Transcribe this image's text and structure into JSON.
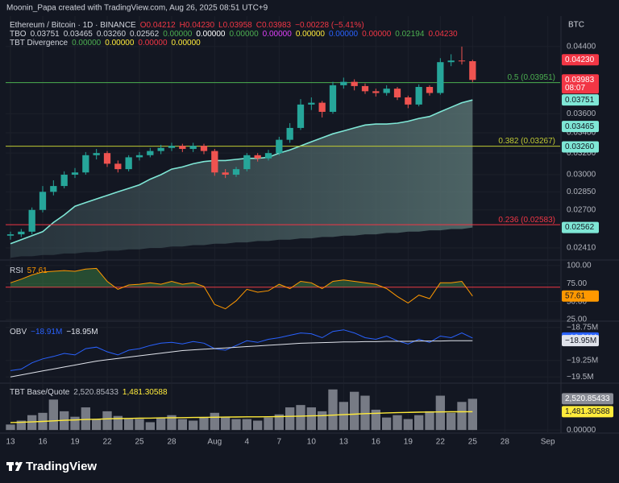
{
  "header": "Moonin_Papa created with TradingView.com, Aug 26, 2025 08:51 UTC+9",
  "footer": "TradingView",
  "chart_data": [
    {
      "type": "candlestick",
      "symbol": "Ethereum / Bitcoin · 1D · BINANCE",
      "ohlc_labels": [
        "O0.04212",
        "H0.04230",
        "L0.03958",
        "C0.03983",
        "−0.00228 (−5.41%)"
      ],
      "indicator_legends": [
        {
          "name": "TBO",
          "values": [
            "0.03751",
            "0.03465",
            "0.03260",
            "0.02562",
            "0.00000",
            "0.00000",
            "0.00000",
            "0.00000",
            "0.00000",
            "0.00000",
            "0.00000",
            "0.02194",
            "0.04230"
          ],
          "colors": [
            "#d1d4dc",
            "#d1d4dc",
            "#d1d4dc",
            "#d1d4dc",
            "#4caf50",
            "#ffffff",
            "#4caf50",
            "#e040fb",
            "#ffeb3b",
            "#2962ff",
            "#f23645",
            "#4caf50",
            "#f23645"
          ]
        },
        {
          "name": "TBT Divergence",
          "values": [
            "0.00000",
            "0.00000",
            "0.00000",
            "0.00000"
          ],
          "colors": [
            "#4caf50",
            "#ffeb3b",
            "#f23645",
            "#ffeb3b"
          ]
        }
      ],
      "currency": "BTC",
      "countdown": "08:07",
      "xlim": [
        -0.45,
        51.15
      ],
      "xticks": [
        {
          "value": 0,
          "label": "13"
        },
        {
          "value": 3,
          "label": "16"
        },
        {
          "value": 6,
          "label": "19"
        },
        {
          "value": 9,
          "label": "22"
        },
        {
          "value": 12,
          "label": "25"
        },
        {
          "value": 15,
          "label": "28"
        },
        {
          "value": 19,
          "label": "Aug"
        },
        {
          "value": 22,
          "label": "4"
        },
        {
          "value": 25,
          "label": "7"
        },
        {
          "value": 28,
          "label": "10"
        },
        {
          "value": 31,
          "label": "13"
        },
        {
          "value": 34,
          "label": "16"
        },
        {
          "value": 37,
          "label": "19"
        },
        {
          "value": 40,
          "label": "22"
        },
        {
          "value": 43,
          "label": "25"
        },
        {
          "value": 46,
          "label": "28"
        },
        {
          "value": 50,
          "label": "Sep"
        }
      ],
      "ylim": [
        0.0233,
        0.0482
      ],
      "log_scale": true,
      "yticks": [
        {
          "value": 0.044,
          "label": "0.04400"
        },
        {
          "value": 0.036,
          "label": "0.03600"
        },
        {
          "value": 0.034,
          "label": "0.03400"
        },
        {
          "value": 0.032,
          "label": "0.03200"
        },
        {
          "value": 0.03,
          "label": "0.03000"
        },
        {
          "value": 0.0285,
          "label": "0.02850"
        },
        {
          "value": 0.027,
          "label": "0.02700"
        },
        {
          "value": 0.0241,
          "label": "0.02410"
        }
      ],
      "up_color": "#26a69a",
      "down_color": "#ef5350",
      "open": [
        0.025,
        0.0251,
        0.0253,
        0.027,
        0.0285,
        0.029,
        0.03,
        0.0302,
        0.0318,
        0.032,
        0.031,
        0.0305,
        0.0316,
        0.0318,
        0.0322,
        0.0325,
        0.0327,
        0.0324,
        0.0327,
        0.0322,
        0.0302,
        0.03,
        0.0305,
        0.0318,
        0.0315,
        0.032,
        0.0333,
        0.0345,
        0.037,
        0.0372,
        0.0362,
        0.0392,
        0.0396,
        0.0391,
        0.0385,
        0.0383,
        0.0388,
        0.0378,
        0.037,
        0.039,
        0.0383,
        0.042,
        0.0422,
        0.04212
      ],
      "high": [
        0.0253,
        0.0255,
        0.0272,
        0.029,
        0.0295,
        0.0303,
        0.0306,
        0.0321,
        0.0324,
        0.0322,
        0.0313,
        0.0318,
        0.0321,
        0.0325,
        0.0328,
        0.033,
        0.0329,
        0.033,
        0.0329,
        0.0324,
        0.0305,
        0.0307,
        0.032,
        0.032,
        0.0323,
        0.0336,
        0.035,
        0.0376,
        0.0378,
        0.0374,
        0.0396,
        0.0401,
        0.0399,
        0.0394,
        0.0388,
        0.0392,
        0.039,
        0.038,
        0.0393,
        0.0392,
        0.0425,
        0.043,
        0.044,
        0.0423
      ],
      "low": [
        0.0247,
        0.0249,
        0.0251,
        0.0268,
        0.0282,
        0.0288,
        0.0297,
        0.03,
        0.0314,
        0.0307,
        0.0302,
        0.0303,
        0.0313,
        0.0316,
        0.0319,
        0.0322,
        0.0321,
        0.0321,
        0.0319,
        0.0299,
        0.0297,
        0.0298,
        0.0303,
        0.0312,
        0.0313,
        0.0318,
        0.033,
        0.0343,
        0.0364,
        0.0356,
        0.036,
        0.0388,
        0.0386,
        0.0382,
        0.0379,
        0.038,
        0.0375,
        0.0366,
        0.0368,
        0.038,
        0.0381,
        0.0415,
        0.0417,
        0.03958
      ],
      "close": [
        0.0251,
        0.0253,
        0.027,
        0.0285,
        0.029,
        0.03,
        0.0302,
        0.0318,
        0.032,
        0.031,
        0.0305,
        0.0316,
        0.0318,
        0.0322,
        0.0325,
        0.0327,
        0.0324,
        0.0327,
        0.0322,
        0.0302,
        0.03,
        0.0305,
        0.0318,
        0.0315,
        0.032,
        0.0333,
        0.0345,
        0.037,
        0.0372,
        0.0362,
        0.0392,
        0.0396,
        0.0391,
        0.0385,
        0.0383,
        0.0388,
        0.0378,
        0.037,
        0.039,
        0.0383,
        0.042,
        0.0422,
        0.0421,
        0.03983
      ],
      "overlay": {
        "color": "#7fe7d6",
        "values": [
          0.0244,
          0.0247,
          0.025,
          0.0253,
          0.026,
          0.0266,
          0.0273,
          0.0276,
          0.0279,
          0.0282,
          0.0285,
          0.0288,
          0.0291,
          0.0296,
          0.03,
          0.0305,
          0.0307,
          0.031,
          0.0312,
          0.0313,
          0.0313,
          0.0314,
          0.0315,
          0.0315,
          0.0316,
          0.032,
          0.0323,
          0.0327,
          0.0331,
          0.0335,
          0.0339,
          0.0342,
          0.0345,
          0.0348,
          0.0349,
          0.0349,
          0.035,
          0.0352,
          0.0355,
          0.0357,
          0.0362,
          0.0367,
          0.0372,
          0.03751
        ],
        "band_lower": [
          0.0234,
          0.0235,
          0.0235,
          0.0236,
          0.0236,
          0.0237,
          0.0237,
          0.0238,
          0.0238,
          0.0239,
          0.0239,
          0.024,
          0.024,
          0.0241,
          0.0241,
          0.0242,
          0.0242,
          0.0243,
          0.0243,
          0.0244,
          0.0244,
          0.0245,
          0.0245,
          0.0246,
          0.0246,
          0.0247,
          0.0247,
          0.0248,
          0.0248,
          0.0249,
          0.0249,
          0.025,
          0.025,
          0.0251,
          0.0251,
          0.0252,
          0.0252,
          0.0253,
          0.0253,
          0.0254,
          0.0254,
          0.0255,
          0.0255,
          0.02562
        ]
      },
      "fib_levels": [
        {
          "label": "0.5 (0.03951)",
          "value": 0.03951,
          "color": "#4caf50"
        },
        {
          "label": "0.382 (0.03267)",
          "value": 0.03267,
          "color": "#c0ca33"
        },
        {
          "label": "0.236 (0.02583)",
          "value": 0.02583,
          "color": "#f23645"
        }
      ],
      "price_tags": [
        {
          "label": "0.04230",
          "value": 0.0423,
          "color": "#f23645",
          "text_color": "#ffffff"
        },
        {
          "label": "0.03983",
          "value": 0.03983,
          "color": "#f23645",
          "text_color": "#ffffff"
        },
        {
          "label": "0.03751",
          "value": 0.03751,
          "color": "#7fe7d6",
          "text_color": "#131722"
        },
        {
          "label": "0.03465",
          "value": 0.03465,
          "color": "#7fe7d6",
          "text_color": "#131722"
        },
        {
          "label": "0.03260",
          "value": 0.0326,
          "color": "#7fe7d6",
          "text_color": "#131722"
        },
        {
          "label": "0.02562",
          "value": 0.02562,
          "color": "#7fe7d6",
          "text_color": "#131722"
        }
      ]
    },
    {
      "type": "line",
      "title": "RSI",
      "ylim": [
        23.9,
        106.5
      ],
      "yticks": [
        {
          "value": 100,
          "label": "100.00"
        },
        {
          "value": 75,
          "label": "75.00"
        },
        {
          "value": 50,
          "label": "50.00"
        },
        {
          "value": 25,
          "label": "25.00"
        }
      ],
      "band_line": {
        "value": 70,
        "color": "#f23645"
      },
      "fill_color": "#4caf50",
      "series": [
        {
          "color": "#ff9800",
          "value_label": "57.61",
          "text_color": "#131722",
          "values": [
            76,
            81,
            87,
            91,
            92,
            93,
            92,
            95,
            96,
            78,
            67,
            73,
            74,
            76,
            74,
            78,
            74,
            76,
            71,
            46,
            40,
            51,
            67,
            63,
            65,
            74,
            68,
            78,
            76,
            68,
            78,
            80,
            78,
            76,
            74,
            68,
            57,
            48,
            59,
            54,
            76,
            76,
            78,
            57.61
          ]
        }
      ]
    },
    {
      "type": "line",
      "title": "OBV",
      "ylim": [
        -19583000,
        -18667000
      ],
      "yticks": [
        {
          "value": -18750000,
          "label": "−18.75M"
        },
        {
          "value": -19250000,
          "label": "−19.25M"
        },
        {
          "value": -19500000,
          "label": "−19.5M"
        }
      ],
      "series": [
        {
          "color": "#2962ff",
          "value_label": "−18.91M",
          "text_color": "#ffffff",
          "values": [
            -19405000,
            -19381000,
            -19286000,
            -19226000,
            -19190000,
            -19143000,
            -19167000,
            -19071000,
            -19048000,
            -19119000,
            -19167000,
            -19095000,
            -19071000,
            -19024000,
            -18988000,
            -18976000,
            -19000000,
            -18964000,
            -18988000,
            -19071000,
            -19095000,
            -19024000,
            -18952000,
            -18976000,
            -18929000,
            -18905000,
            -18869000,
            -18833000,
            -18845000,
            -18905000,
            -18810000,
            -18786000,
            -18833000,
            -18905000,
            -18929000,
            -18881000,
            -18952000,
            -19000000,
            -18929000,
            -18976000,
            -18881000,
            -18905000,
            -18833000,
            -18910000
          ]
        },
        {
          "color": "#e0e3eb",
          "value_label": "−18.95M",
          "text_color": "#131722",
          "values": [
            -19500000,
            -19470000,
            -19440000,
            -19410000,
            -19380000,
            -19350000,
            -19320000,
            -19290000,
            -19260000,
            -19240000,
            -19220000,
            -19200000,
            -19180000,
            -19160000,
            -19140000,
            -19120000,
            -19100000,
            -19090000,
            -19080000,
            -19070000,
            -19060000,
            -19050000,
            -19040000,
            -19030000,
            -19020000,
            -19010000,
            -19000000,
            -18990000,
            -18985000,
            -18980000,
            -18975000,
            -18970000,
            -18970000,
            -18965000,
            -18965000,
            -18960000,
            -18960000,
            -18960000,
            -18955000,
            -18955000,
            -18955000,
            -18950000,
            -18950000,
            -18950000
          ]
        }
      ]
    },
    {
      "type": "bar",
      "title": "TBT Base/Quote",
      "ylim": [
        -252,
        3718
      ],
      "yticks": [
        {
          "value": 0,
          "label": "0.00000"
        }
      ],
      "series": [
        {
          "type": "bar",
          "color": "#8a8d96",
          "value_label": "2,520.85433",
          "text_color": "#ffffff",
          "values": [
            441,
            756,
            1197,
            1386,
            2457,
            1512,
            1071,
            1827,
            882,
            1512,
            1134,
            882,
            882,
            630,
            1008,
            1197,
            882,
            756,
            1008,
            1386,
            1071,
            882,
            882,
            756,
            1008,
            1260,
            1827,
            2016,
            1827,
            1512,
            3277,
            2268,
            3088,
            2772,
            1638,
            1008,
            1197,
            882,
            1197,
            1512,
            2772,
            1386,
            2268,
            2520.85433
          ]
        },
        {
          "type": "line",
          "color": "#ffeb3b",
          "value_label": "1,481.30588",
          "text_color": "#131722",
          "values": [
            600,
            620,
            650,
            690,
            740,
            780,
            810,
            850,
            870,
            900,
            920,
            935,
            950,
            960,
            975,
            990,
            1000,
            1010,
            1020,
            1030,
            1040,
            1050,
            1060,
            1065,
            1070,
            1080,
            1100,
            1120,
            1140,
            1160,
            1200,
            1240,
            1280,
            1320,
            1350,
            1380,
            1400,
            1420,
            1440,
            1450,
            1460,
            1470,
            1475,
            1481.30588
          ]
        }
      ]
    }
  ]
}
